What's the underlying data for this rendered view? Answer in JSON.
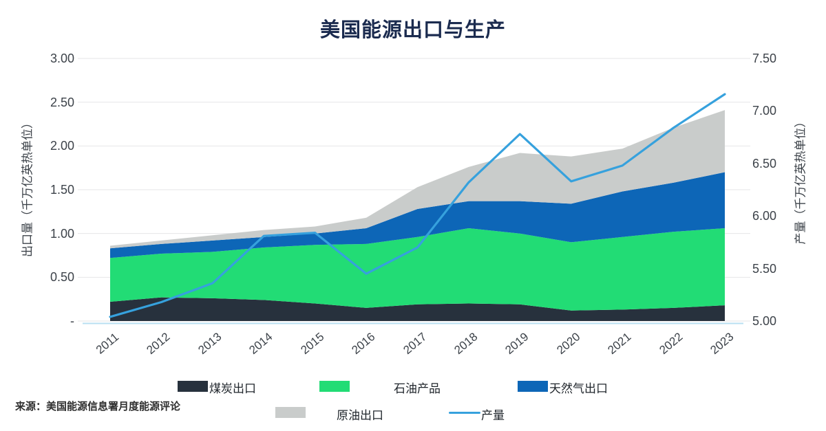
{
  "title": "美国能源出口与生产",
  "source_note": "来源：美国能源信息署月度能源评论",
  "colors": {
    "title": "#1b2b4f",
    "coal": "#27313d",
    "petroleum": "#22dc75",
    "gas": "#0d66b7",
    "crude": "#c9cccb",
    "production_line": "#36a1dd",
    "grid": "#e4e5e7",
    "axis_text": "#3c4249",
    "baseline": "#b8dff2"
  },
  "chart_data": {
    "type": "area",
    "stacked": true,
    "title": "美国能源出口与生产",
    "x": [
      "2011",
      "2012",
      "2013",
      "2014",
      "2015",
      "2016",
      "2017",
      "2018",
      "2019",
      "2020",
      "2021",
      "2022",
      "2023"
    ],
    "series": [
      {
        "name": "煤炭出口",
        "type": "area",
        "axis": "left",
        "color_key": "coal",
        "values": [
          0.22,
          0.27,
          0.26,
          0.24,
          0.2,
          0.15,
          0.19,
          0.2,
          0.19,
          0.12,
          0.13,
          0.15,
          0.18
        ]
      },
      {
        "name": "石油产品",
        "type": "area",
        "axis": "left",
        "color_key": "petroleum",
        "values": [
          0.5,
          0.5,
          0.53,
          0.6,
          0.67,
          0.73,
          0.77,
          0.86,
          0.81,
          0.78,
          0.83,
          0.87,
          0.88
        ]
      },
      {
        "name": "天然气出口",
        "type": "area",
        "axis": "left",
        "color_key": "gas",
        "values": [
          0.11,
          0.11,
          0.13,
          0.12,
          0.13,
          0.18,
          0.32,
          0.31,
          0.37,
          0.44,
          0.52,
          0.56,
          0.64
        ]
      },
      {
        "name": "原油出口",
        "type": "area",
        "axis": "left",
        "color_key": "crude",
        "values": [
          0.03,
          0.04,
          0.06,
          0.08,
          0.08,
          0.12,
          0.25,
          0.39,
          0.55,
          0.54,
          0.49,
          0.63,
          0.71
        ]
      },
      {
        "name": "产量",
        "type": "line",
        "axis": "right",
        "color_key": "production_line",
        "values": [
          5.04,
          5.18,
          5.36,
          5.81,
          5.84,
          5.45,
          5.7,
          6.32,
          6.78,
          6.33,
          6.48,
          6.84,
          7.16
        ]
      }
    ],
    "left_axis": {
      "label": "出口量（千万亿英热单位）",
      "min": 0,
      "max": 3,
      "step": 0.5,
      "ticks": [
        "3.00",
        "2.50",
        "2.00",
        "1.50",
        "1.00",
        "0.50",
        "-"
      ]
    },
    "right_axis": {
      "label": "产量（千万亿英热单位）",
      "min": 5,
      "max": 7.5,
      "step": 0.5,
      "ticks": [
        "7.50",
        "7.00",
        "6.50",
        "6.00",
        "5.50",
        "5.00"
      ]
    },
    "legend_position": "bottom",
    "grid": true
  }
}
